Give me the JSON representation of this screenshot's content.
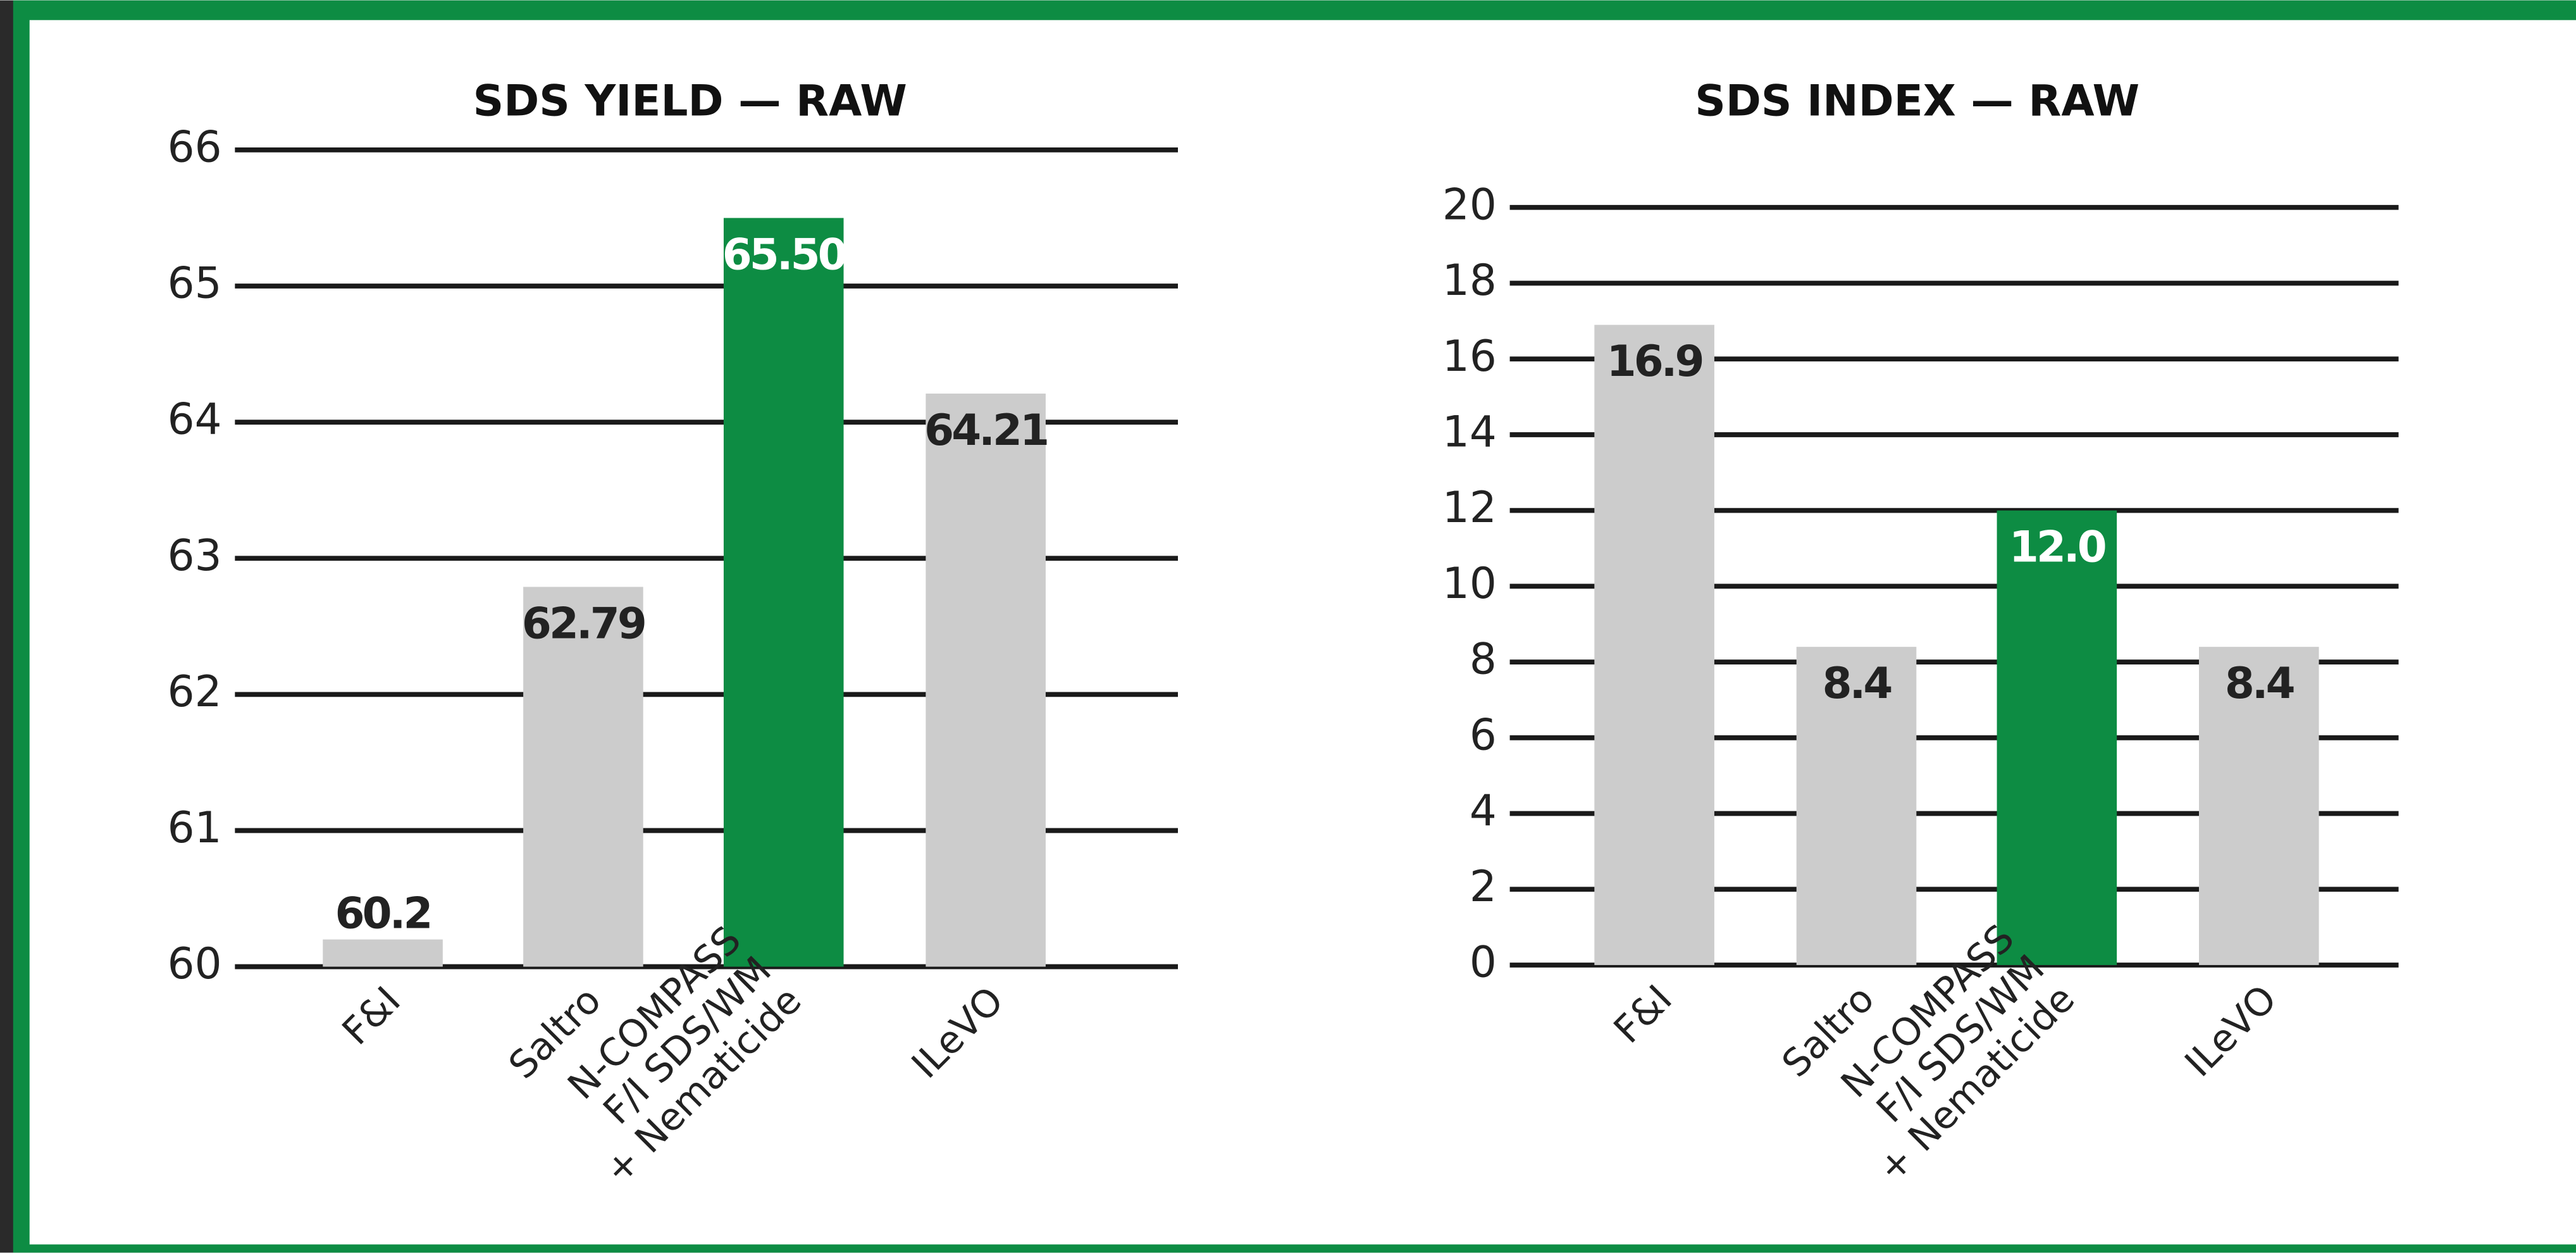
{
  "chart_data": [
    {
      "type": "bar",
      "title": "SDS YIELD — RAW",
      "categories": [
        "F&I",
        "Saltro",
        "N-COMPASS\nF/I SDS/WM\n+ Nematicide",
        "ILeVO"
      ],
      "values": [
        60.2,
        62.79,
        65.5,
        64.21
      ],
      "value_labels": [
        "60.2",
        "62.79",
        "65.50",
        "64.21"
      ],
      "colors": [
        "#cccccc",
        "#cccccc",
        "#0d8c43",
        "#cccccc"
      ],
      "ylim": [
        60,
        66
      ],
      "yticks": [
        60,
        61,
        62,
        63,
        64,
        65,
        66
      ],
      "grid": true
    },
    {
      "type": "bar",
      "title": "SDS INDEX — RAW",
      "categories": [
        "F&I",
        "Saltro",
        "N-COMPASS\nF/I SDS/WM\n+ Nematicide",
        "ILeVO"
      ],
      "values": [
        16.9,
        8.4,
        12.0,
        8.4
      ],
      "value_labels": [
        "16.9",
        "8.4",
        "12.0",
        "8.4"
      ],
      "colors": [
        "#cccccc",
        "#cccccc",
        "#0d8c43",
        "#cccccc"
      ],
      "ylim": [
        0,
        20
      ],
      "yticks": [
        0,
        2,
        4,
        6,
        8,
        10,
        12,
        14,
        16,
        18,
        20
      ],
      "grid": true
    }
  ]
}
